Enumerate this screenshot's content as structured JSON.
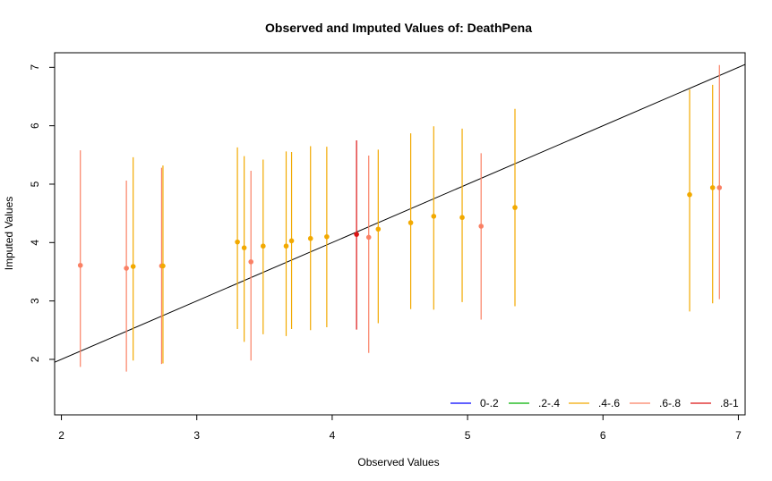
{
  "chart_data": {
    "type": "scatter",
    "title": "Observed and Imputed Values of: DeathPena",
    "xlabel": "Observed Values",
    "ylabel": "Imputed Values",
    "xlim": [
      1.95,
      7.05
    ],
    "ylim": [
      1.05,
      7.25
    ],
    "xticks": [
      "2",
      "3",
      "4",
      "5",
      "6",
      "7"
    ],
    "yticks": [
      "2",
      "3",
      "4",
      "5",
      "6",
      "7"
    ],
    "grid": false,
    "reference_line": {
      "x": [
        1.95,
        7.05
      ],
      "y": [
        1.95,
        7.05
      ],
      "color": "#000000"
    },
    "legend": {
      "placement": "bottom-right",
      "entries": [
        {
          "label": "0-.2",
          "color": "#0000ff"
        },
        {
          "label": ".2-.4",
          "color": "#00b000"
        },
        {
          "label": ".4-.6",
          "color": "#f2a900"
        },
        {
          "label": ".6-.8",
          "color": "#fa8064"
        },
        {
          "label": ".8-1",
          "color": "#dc1414"
        }
      ]
    },
    "points": [
      {
        "x": 2.14,
        "y": 3.61,
        "lo": 1.87,
        "hi": 5.58,
        "group": ".6-.8"
      },
      {
        "x": 2.48,
        "y": 3.56,
        "lo": 1.79,
        "hi": 5.06,
        "group": ".6-.8"
      },
      {
        "x": 2.53,
        "y": 3.59,
        "lo": 1.98,
        "hi": 5.46,
        "group": ".4-.6"
      },
      {
        "x": 2.74,
        "y": 3.6,
        "lo": 1.92,
        "hi": 5.28,
        "group": ".6-.8"
      },
      {
        "x": 2.75,
        "y": 3.6,
        "lo": 1.93,
        "hi": 5.32,
        "group": ".4-.6"
      },
      {
        "x": 3.3,
        "y": 4.01,
        "lo": 2.52,
        "hi": 5.63,
        "group": ".4-.6"
      },
      {
        "x": 3.35,
        "y": 3.91,
        "lo": 2.3,
        "hi": 5.48,
        "group": ".4-.6"
      },
      {
        "x": 3.4,
        "y": 3.67,
        "lo": 1.98,
        "hi": 5.23,
        "group": ".6-.8"
      },
      {
        "x": 3.49,
        "y": 3.94,
        "lo": 2.43,
        "hi": 5.42,
        "group": ".4-.6"
      },
      {
        "x": 3.66,
        "y": 3.94,
        "lo": 2.4,
        "hi": 5.56,
        "group": ".4-.6"
      },
      {
        "x": 3.7,
        "y": 4.03,
        "lo": 2.52,
        "hi": 5.55,
        "group": ".4-.6"
      },
      {
        "x": 3.84,
        "y": 4.07,
        "lo": 2.5,
        "hi": 5.65,
        "group": ".4-.6"
      },
      {
        "x": 3.96,
        "y": 4.1,
        "lo": 2.55,
        "hi": 5.64,
        "group": ".4-.6"
      },
      {
        "x": 4.18,
        "y": 4.14,
        "lo": 2.51,
        "hi": 5.75,
        "group": ".8-1"
      },
      {
        "x": 4.27,
        "y": 4.09,
        "lo": 2.11,
        "hi": 5.49,
        "group": ".6-.8"
      },
      {
        "x": 4.34,
        "y": 4.23,
        "lo": 2.62,
        "hi": 5.59,
        "group": ".4-.6"
      },
      {
        "x": 4.58,
        "y": 4.34,
        "lo": 2.86,
        "hi": 5.87,
        "group": ".4-.6"
      },
      {
        "x": 4.75,
        "y": 4.45,
        "lo": 2.85,
        "hi": 5.99,
        "group": ".4-.6"
      },
      {
        "x": 4.96,
        "y": 4.43,
        "lo": 2.98,
        "hi": 5.95,
        "group": ".4-.6"
      },
      {
        "x": 5.1,
        "y": 4.28,
        "lo": 2.68,
        "hi": 5.53,
        "group": ".6-.8"
      },
      {
        "x": 5.35,
        "y": 4.6,
        "lo": 2.91,
        "hi": 6.29,
        "group": ".4-.6"
      },
      {
        "x": 6.64,
        "y": 4.82,
        "lo": 2.82,
        "hi": 6.62,
        "group": ".4-.6"
      },
      {
        "x": 6.81,
        "y": 4.94,
        "lo": 2.96,
        "hi": 6.7,
        "group": ".4-.6"
      },
      {
        "x": 6.86,
        "y": 4.94,
        "lo": 3.03,
        "hi": 7.04,
        "group": ".6-.8"
      }
    ]
  }
}
